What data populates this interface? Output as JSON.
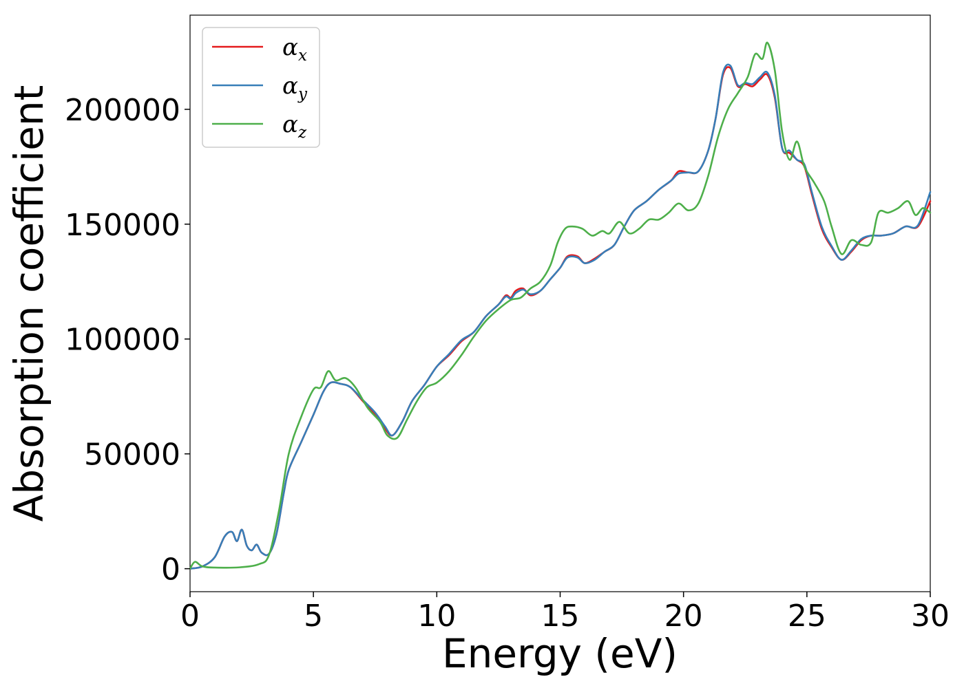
{
  "chart_data": {
    "type": "line",
    "title": "",
    "xlabel": "Energy (eV)",
    "ylabel": "Absorption coefficient",
    "xlim": [
      0,
      30
    ],
    "ylim": [
      -10000,
      241000
    ],
    "xticks": [
      0,
      5,
      10,
      15,
      20,
      25,
      30
    ],
    "xtick_labels": [
      "0",
      "5",
      "10",
      "15",
      "20",
      "25",
      "30"
    ],
    "yticks": [
      0,
      50000,
      100000,
      150000,
      200000
    ],
    "ytick_labels": [
      "0",
      "50000",
      "100000",
      "150000",
      "200000"
    ],
    "grid": false,
    "legend_position": "upper-left",
    "series": [
      {
        "name": "αx",
        "legend_symbol": "α",
        "legend_subscript": "x",
        "color": "#e41a1c",
        "points": [
          [
            0,
            0
          ],
          [
            0.5,
            1000
          ],
          [
            1.0,
            5000
          ],
          [
            1.4,
            14000
          ],
          [
            1.7,
            16000
          ],
          [
            1.9,
            12000
          ],
          [
            2.1,
            17000
          ],
          [
            2.3,
            10000
          ],
          [
            2.5,
            8000
          ],
          [
            2.7,
            10500
          ],
          [
            2.9,
            7000
          ],
          [
            3.2,
            6500
          ],
          [
            3.5,
            15000
          ],
          [
            3.8,
            33000
          ],
          [
            4.0,
            43000
          ],
          [
            4.5,
            55000
          ],
          [
            5.0,
            67000
          ],
          [
            5.4,
            77000
          ],
          [
            5.7,
            81000
          ],
          [
            6.1,
            80500
          ],
          [
            6.5,
            79000
          ],
          [
            7.0,
            73000
          ],
          [
            7.5,
            67000
          ],
          [
            7.9,
            61000
          ],
          [
            8.2,
            58000
          ],
          [
            8.6,
            64000
          ],
          [
            9.0,
            73000
          ],
          [
            9.5,
            80000
          ],
          [
            10.0,
            88000
          ],
          [
            10.5,
            93000
          ],
          [
            11.0,
            99000
          ],
          [
            11.5,
            103000
          ],
          [
            12.0,
            110000
          ],
          [
            12.5,
            115000
          ],
          [
            12.8,
            119000
          ],
          [
            13.0,
            118000
          ],
          [
            13.2,
            121000
          ],
          [
            13.5,
            122000
          ],
          [
            13.8,
            119000
          ],
          [
            14.2,
            121000
          ],
          [
            14.6,
            126000
          ],
          [
            15.0,
            131000
          ],
          [
            15.3,
            136000
          ],
          [
            15.7,
            136000
          ],
          [
            16.0,
            133000
          ],
          [
            16.4,
            135000
          ],
          [
            16.8,
            138000
          ],
          [
            17.2,
            141000
          ],
          [
            17.6,
            149000
          ],
          [
            18.0,
            156000
          ],
          [
            18.5,
            160000
          ],
          [
            19.0,
            165000
          ],
          [
            19.5,
            169000
          ],
          [
            19.8,
            173000
          ],
          [
            20.2,
            172500
          ],
          [
            20.6,
            173000
          ],
          [
            21.0,
            182000
          ],
          [
            21.3,
            196000
          ],
          [
            21.6,
            215000
          ],
          [
            21.9,
            218000
          ],
          [
            22.2,
            210000
          ],
          [
            22.5,
            211000
          ],
          [
            22.8,
            210000
          ],
          [
            23.1,
            213000
          ],
          [
            23.4,
            215000
          ],
          [
            23.7,
            205000
          ],
          [
            24.0,
            183000
          ],
          [
            24.3,
            181000
          ],
          [
            24.6,
            178000
          ],
          [
            24.9,
            175000
          ],
          [
            25.2,
            163000
          ],
          [
            25.6,
            148000
          ],
          [
            26.0,
            140000
          ],
          [
            26.4,
            134500
          ],
          [
            26.8,
            138000
          ],
          [
            27.2,
            143000
          ],
          [
            27.6,
            145000
          ],
          [
            28.0,
            145000
          ],
          [
            28.5,
            146000
          ],
          [
            29.0,
            149000
          ],
          [
            29.5,
            149000
          ],
          [
            30.0,
            160000
          ]
        ]
      },
      {
        "name": "αy",
        "legend_symbol": "α",
        "legend_subscript": "y",
        "color": "#377eb8",
        "points": [
          [
            0,
            0
          ],
          [
            0.5,
            1000
          ],
          [
            1.0,
            5000
          ],
          [
            1.4,
            14000
          ],
          [
            1.7,
            16000
          ],
          [
            1.9,
            12000
          ],
          [
            2.1,
            17000
          ],
          [
            2.3,
            10000
          ],
          [
            2.5,
            8000
          ],
          [
            2.7,
            10500
          ],
          [
            2.9,
            7000
          ],
          [
            3.2,
            6500
          ],
          [
            3.5,
            15000
          ],
          [
            3.8,
            33000
          ],
          [
            4.0,
            43000
          ],
          [
            4.5,
            55000
          ],
          [
            5.0,
            67000
          ],
          [
            5.4,
            77000
          ],
          [
            5.7,
            81000
          ],
          [
            6.1,
            80500
          ],
          [
            6.5,
            79000
          ],
          [
            7.0,
            73500
          ],
          [
            7.5,
            68000
          ],
          [
            7.9,
            62000
          ],
          [
            8.2,
            58000
          ],
          [
            8.6,
            64000
          ],
          [
            9.0,
            73000
          ],
          [
            9.5,
            80000
          ],
          [
            10.0,
            88000
          ],
          [
            10.5,
            93500
          ],
          [
            11.0,
            99500
          ],
          [
            11.5,
            103000
          ],
          [
            12.0,
            110000
          ],
          [
            12.5,
            115000
          ],
          [
            12.8,
            118500
          ],
          [
            13.0,
            117500
          ],
          [
            13.2,
            120000
          ],
          [
            13.5,
            121500
          ],
          [
            13.8,
            119500
          ],
          [
            14.2,
            121000
          ],
          [
            14.6,
            126000
          ],
          [
            15.0,
            131000
          ],
          [
            15.3,
            135500
          ],
          [
            15.7,
            135500
          ],
          [
            16.0,
            133000
          ],
          [
            16.4,
            134500
          ],
          [
            16.8,
            138000
          ],
          [
            17.2,
            141000
          ],
          [
            17.6,
            149000
          ],
          [
            18.0,
            156000
          ],
          [
            18.5,
            160000
          ],
          [
            19.0,
            165000
          ],
          [
            19.5,
            169000
          ],
          [
            19.8,
            172000
          ],
          [
            20.2,
            172500
          ],
          [
            20.6,
            173000
          ],
          [
            21.0,
            182000
          ],
          [
            21.3,
            196000
          ],
          [
            21.6,
            216000
          ],
          [
            21.9,
            219000
          ],
          [
            22.2,
            210500
          ],
          [
            22.5,
            211500
          ],
          [
            22.8,
            211000
          ],
          [
            23.1,
            214000
          ],
          [
            23.4,
            216000
          ],
          [
            23.7,
            206000
          ],
          [
            24.0,
            183000
          ],
          [
            24.3,
            182000
          ],
          [
            24.6,
            178000
          ],
          [
            24.9,
            176000
          ],
          [
            25.2,
            164000
          ],
          [
            25.6,
            149000
          ],
          [
            26.0,
            140500
          ],
          [
            26.4,
            134500
          ],
          [
            26.8,
            138500
          ],
          [
            27.2,
            143500
          ],
          [
            27.6,
            145000
          ],
          [
            28.0,
            145000
          ],
          [
            28.5,
            146000
          ],
          [
            29.0,
            149000
          ],
          [
            29.5,
            149500
          ],
          [
            30.0,
            164000
          ]
        ]
      },
      {
        "name": "αz",
        "legend_symbol": "α",
        "legend_subscript": "z",
        "color": "#4daf4a",
        "points": [
          [
            0,
            0
          ],
          [
            0.2,
            3000
          ],
          [
            0.5,
            1000
          ],
          [
            1.0,
            500
          ],
          [
            2.0,
            600
          ],
          [
            2.8,
            2000
          ],
          [
            3.2,
            6000
          ],
          [
            3.6,
            25000
          ],
          [
            4.0,
            50000
          ],
          [
            4.5,
            66000
          ],
          [
            5.0,
            78000
          ],
          [
            5.3,
            79000
          ],
          [
            5.6,
            86000
          ],
          [
            5.9,
            82000
          ],
          [
            6.3,
            83000
          ],
          [
            6.7,
            79000
          ],
          [
            7.2,
            70000
          ],
          [
            7.7,
            64000
          ],
          [
            8.0,
            58000
          ],
          [
            8.4,
            57000
          ],
          [
            8.8,
            65000
          ],
          [
            9.2,
            73000
          ],
          [
            9.6,
            79000
          ],
          [
            10.0,
            81000
          ],
          [
            10.5,
            86000
          ],
          [
            11.0,
            93000
          ],
          [
            11.5,
            101000
          ],
          [
            12.0,
            108000
          ],
          [
            12.5,
            113000
          ],
          [
            13.0,
            117000
          ],
          [
            13.4,
            118000
          ],
          [
            13.8,
            122000
          ],
          [
            14.2,
            125000
          ],
          [
            14.6,
            132000
          ],
          [
            14.9,
            142000
          ],
          [
            15.2,
            148000
          ],
          [
            15.5,
            149000
          ],
          [
            15.9,
            148000
          ],
          [
            16.3,
            145000
          ],
          [
            16.7,
            147000
          ],
          [
            17.0,
            146000
          ],
          [
            17.4,
            151000
          ],
          [
            17.8,
            146000
          ],
          [
            18.2,
            148000
          ],
          [
            18.6,
            152000
          ],
          [
            19.0,
            152000
          ],
          [
            19.4,
            155000
          ],
          [
            19.8,
            159000
          ],
          [
            20.2,
            156000
          ],
          [
            20.6,
            159000
          ],
          [
            21.0,
            171000
          ],
          [
            21.4,
            188000
          ],
          [
            21.8,
            200000
          ],
          [
            22.2,
            207000
          ],
          [
            22.6,
            214000
          ],
          [
            22.9,
            224000
          ],
          [
            23.2,
            222000
          ],
          [
            23.4,
            229000
          ],
          [
            23.7,
            217000
          ],
          [
            24.0,
            190000
          ],
          [
            24.3,
            178000
          ],
          [
            24.6,
            186000
          ],
          [
            24.9,
            175000
          ],
          [
            25.3,
            168000
          ],
          [
            25.7,
            160000
          ],
          [
            26.0,
            149000
          ],
          [
            26.4,
            137000
          ],
          [
            26.8,
            143000
          ],
          [
            27.2,
            141000
          ],
          [
            27.6,
            142000
          ],
          [
            27.9,
            155000
          ],
          [
            28.3,
            155000
          ],
          [
            28.7,
            157000
          ],
          [
            29.1,
            160000
          ],
          [
            29.4,
            154000
          ],
          [
            29.7,
            157000
          ],
          [
            30.0,
            155000
          ]
        ]
      }
    ]
  }
}
